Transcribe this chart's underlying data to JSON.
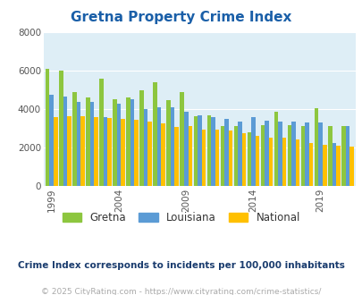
{
  "title": "Gretna Property Crime Index",
  "subtitle": "Crime Index corresponds to incidents per 100,000 inhabitants",
  "footer": "© 2025 CityRating.com - https://www.cityrating.com/crime-statistics/",
  "years": [
    1999,
    2000,
    2001,
    2002,
    2003,
    2004,
    2005,
    2006,
    2007,
    2008,
    2009,
    2010,
    2011,
    2012,
    2013,
    2014,
    2015,
    2016,
    2017,
    2018,
    2019,
    2020,
    2021
  ],
  "gretna": [
    6100,
    6000,
    4900,
    4600,
    5600,
    4500,
    4600,
    5000,
    5400,
    4450,
    4900,
    3650,
    3700,
    3100,
    3100,
    2800,
    3150,
    3850,
    3150,
    3100,
    4050,
    3100,
    3100
  ],
  "louisiana": [
    4750,
    4650,
    4400,
    4400,
    3600,
    4300,
    4500,
    4000,
    4100,
    4100,
    3850,
    3700,
    3600,
    3500,
    3350,
    3600,
    3400,
    3350,
    3350,
    3300,
    3300,
    2250,
    3100
  ],
  "national": [
    3600,
    3650,
    3650,
    3600,
    3550,
    3500,
    3450,
    3350,
    3250,
    3050,
    3100,
    2950,
    2950,
    2900,
    2750,
    2600,
    2500,
    2500,
    2400,
    2250,
    2150,
    2100,
    2050
  ],
  "gretna_color": "#8dc63f",
  "louisiana_color": "#5b9bd5",
  "national_color": "#ffc000",
  "bg_color": "#deeef6",
  "title_color": "#1a5fa8",
  "ylim": [
    0,
    8000
  ],
  "yticks": [
    0,
    2000,
    4000,
    6000,
    8000
  ],
  "grid_color": "#ffffff",
  "subtitle_color": "#1a3c6e",
  "footer_color": "#aaaaaa",
  "tick_years": [
    1999,
    2004,
    2009,
    2014,
    2019
  ]
}
